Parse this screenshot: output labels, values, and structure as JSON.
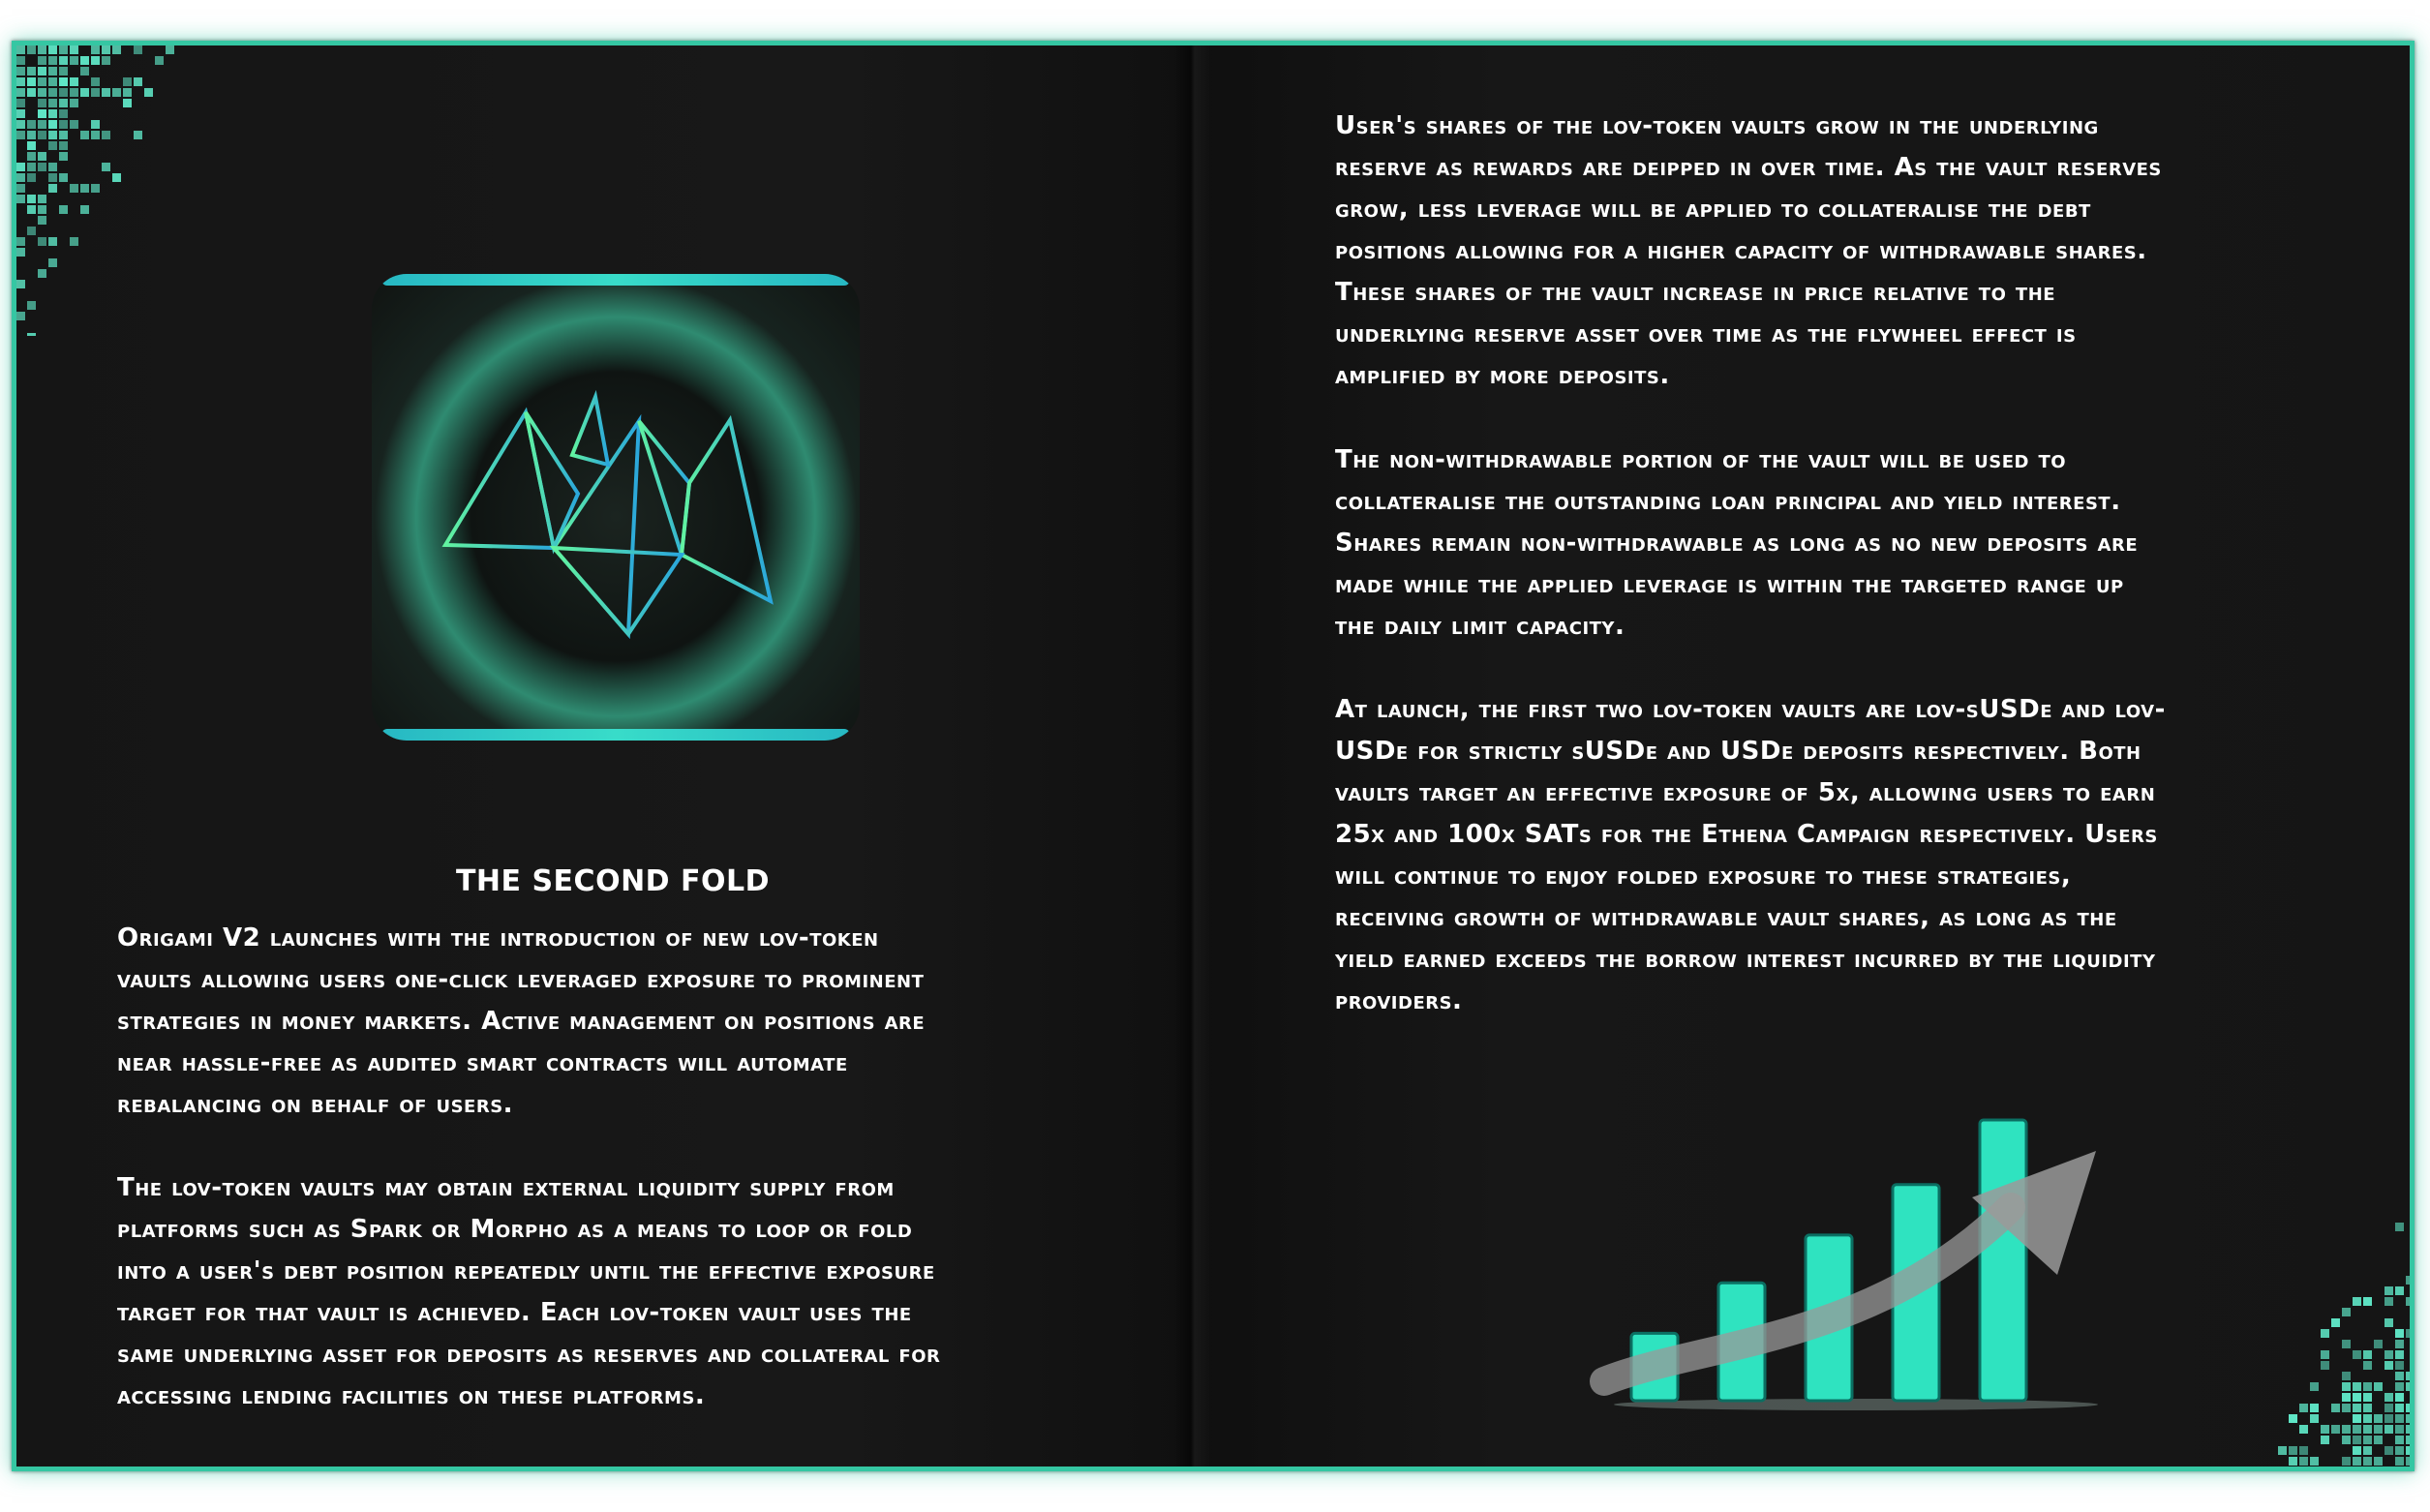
{
  "left_page": {
    "heading": "THE SECOND FOLD",
    "paragraph_1": [
      "Origami V2 launches with the introduction of new lov-token",
      "vaults allowing users one-click leveraged exposure to prominent",
      "strategies in money markets. Active management on positions are",
      "near hassle-free as audited smart contracts will automate",
      "rebalancing on behalf of users."
    ],
    "paragraph_2": [
      "The lov-token vaults may obtain external liquidity supply from",
      "platforms such as Spark or Morpho as a means to loop or fold",
      "into a user's debt position repeatedly until the effective exposure",
      "target for that vault is achieved. Each lov-token vault uses the",
      "same underlying asset for deposits as reserves and collateral for",
      "accessing lending facilities on these platforms."
    ]
  },
  "right_page": {
    "paragraph_1": [
      "User's shares of the lov-token vaults grow in the underlying",
      "reserve as rewards are deipped in over time. As the vault reserves",
      "grow, less leverage will be applied to collateralise the debt",
      "positions allowing for a higher capacity of withdrawable shares.",
      "These shares of the vault increase in price relative to the",
      "underlying reserve asset over time as the flywheel effect is",
      "amplified by more deposits."
    ],
    "paragraph_2": [
      "The non-withdrawable portion of the vault will be used to",
      "collateralise the outstanding loan principal and yield interest.",
      "Shares remain non-withdrawable as long as no new deposits are",
      "made while the applied leverage is within the targeted range up",
      "the daily limit capacity."
    ],
    "paragraph_3": [
      "At launch, the first two lov-token vaults are lov-sUSDe and lov-",
      "USDe for strictly sUSDe and USDe deposits respectively. Both",
      "vaults target an effective exposure of 5x, allowing users to earn",
      "25x and 100x SATs for the Ethena Campaign respectively. Users",
      "will continue to enjoy folded exposure to these strategies,",
      "receiving growth of withdrawable vault shares, as long as the",
      "yield earned exceeds the borrow interest incurred by the liquidity",
      "providers."
    ]
  },
  "illustration": {
    "icon": "growth-bar-chart-icon",
    "relative_bar_heights": [
      0.24,
      0.42,
      0.59,
      0.77,
      1.0
    ]
  },
  "logo": {
    "icon": "origami-mountain-logo"
  },
  "colors": {
    "accent": "#35c7a3",
    "background": "#131313",
    "text": "#ffffff",
    "logo_gradient": [
      "#5ff2a0",
      "#27a7d8"
    ],
    "bar_fill": "#2fe3c0"
  }
}
